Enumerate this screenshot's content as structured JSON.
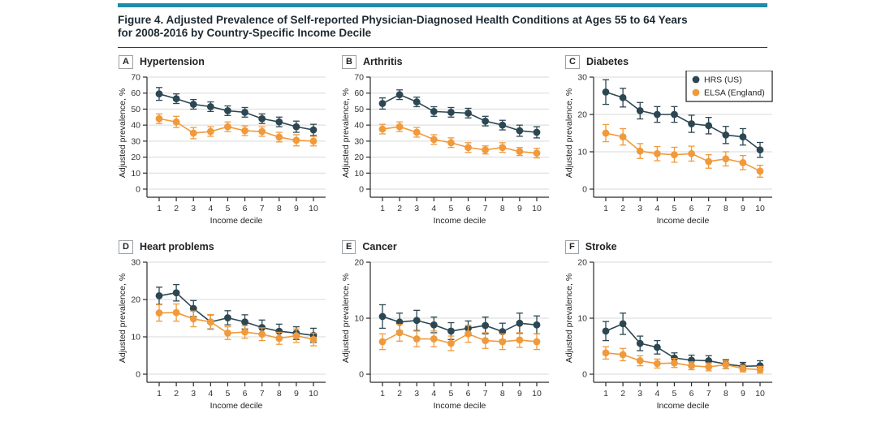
{
  "accent_colors": {
    "header_bar": "#1d8cab",
    "hrs": "#2c4752",
    "elsa": "#f09a3c",
    "gridline": "#d9d9d9",
    "axis": "#2b2b2b",
    "tick_text": "#333333",
    "legend_border": "#1a1a1a"
  },
  "figure": {
    "title_line1": "Figure 4. Adjusted Prevalence of Self-reported Physician-Diagnosed Health Conditions at Ages 55 to 64 Years",
    "title_line2": "for 2008-2016 by Country-Specific Income Decile"
  },
  "legend": {
    "position": "top-right-of-panel-C",
    "items": [
      {
        "label": "HRS (US)",
        "color": "#2c4752"
      },
      {
        "label": "ELSA (England)",
        "color": "#f09a3c"
      }
    ]
  },
  "chart_data": [
    {
      "type": "line",
      "panel_label": "A",
      "title": "Hypertension",
      "xlabel": "Income decile",
      "ylabel": "Adjusted prevalence, %",
      "x": [
        1,
        2,
        3,
        4,
        5,
        6,
        7,
        8,
        9,
        10
      ],
      "ylim": [
        0,
        70
      ],
      "yticks": [
        0,
        10,
        20,
        30,
        40,
        50,
        60,
        70
      ],
      "grid": true,
      "legend": false,
      "series": [
        {
          "name": "HRS (US)",
          "color": "#2c4752",
          "values": [
            59.5,
            56.5,
            53,
            51.5,
            49,
            48,
            44,
            42,
            39,
            37
          ],
          "ci": [
            4,
            3,
            3,
            3,
            3,
            3,
            3,
            3,
            3.5,
            3.5
          ]
        },
        {
          "name": "ELSA (England)",
          "color": "#f09a3c",
          "values": [
            44,
            42,
            35,
            36,
            39,
            36.5,
            36,
            32.5,
            30.5,
            30
          ],
          "ci": [
            3,
            3.5,
            3.5,
            3,
            3,
            3,
            3,
            3,
            3.5,
            3
          ]
        }
      ]
    },
    {
      "type": "line",
      "panel_label": "B",
      "title": "Arthritis",
      "xlabel": "Income decile",
      "ylabel": "Adjusted prevalence, %",
      "x": [
        1,
        2,
        3,
        4,
        5,
        6,
        7,
        8,
        9,
        10
      ],
      "ylim": [
        0,
        70
      ],
      "yticks": [
        0,
        10,
        20,
        30,
        40,
        50,
        60,
        70
      ],
      "grid": true,
      "legend": false,
      "series": [
        {
          "name": "HRS (US)",
          "color": "#2c4752",
          "values": [
            53.5,
            59,
            54.5,
            48.5,
            48,
            47.5,
            42.5,
            40,
            36.5,
            35.5
          ],
          "ci": [
            3.5,
            3,
            3,
            3,
            3,
            3,
            3,
            3,
            3.5,
            3.5
          ]
        },
        {
          "name": "ELSA (England)",
          "color": "#f09a3c",
          "values": [
            37.5,
            39,
            35.5,
            31,
            29,
            26,
            24.5,
            26,
            23.5,
            22.5
          ],
          "ci": [
            3,
            3,
            3,
            3,
            3,
            3,
            2.5,
            3,
            2.5,
            3
          ]
        }
      ]
    },
    {
      "type": "line",
      "panel_label": "C",
      "title": "Diabetes",
      "xlabel": "Income decile",
      "ylabel": "Adjusted prevalence, %",
      "x": [
        1,
        2,
        3,
        4,
        5,
        6,
        7,
        8,
        9,
        10
      ],
      "ylim": [
        0,
        30
      ],
      "yticks": [
        0,
        10,
        20,
        30
      ],
      "grid": true,
      "legend": true,
      "series": [
        {
          "name": "HRS (US)",
          "color": "#2c4752",
          "values": [
            26,
            24.5,
            21,
            20,
            20,
            17.5,
            17,
            14.5,
            14,
            10.5
          ],
          "ci": [
            3.3,
            2.5,
            2.2,
            2.1,
            2.1,
            2.3,
            2.2,
            2.3,
            2.2,
            2
          ]
        },
        {
          "name": "ELSA (England)",
          "color": "#f09a3c",
          "values": [
            15,
            14,
            10.2,
            9.5,
            9.2,
            9.5,
            7.4,
            8.1,
            7.1,
            4.8
          ],
          "ci": [
            2.3,
            2.2,
            2,
            1.9,
            2,
            2,
            1.8,
            1.9,
            1.9,
            1.6
          ]
        }
      ]
    },
    {
      "type": "line",
      "panel_label": "D",
      "title": "Heart problems",
      "xlabel": "Income decile",
      "ylabel": "Adjusted prevalence, %",
      "x": [
        1,
        2,
        3,
        4,
        5,
        6,
        7,
        8,
        9,
        10
      ],
      "ylim": [
        0,
        30
      ],
      "yticks": [
        0,
        10,
        20,
        30
      ],
      "grid": true,
      "legend": false,
      "series": [
        {
          "name": "HRS (US)",
          "color": "#2c4752",
          "values": [
            21,
            21.8,
            17.6,
            14,
            15.1,
            14,
            12.5,
            11.5,
            11,
            10.4
          ],
          "ci": [
            2.3,
            2.2,
            2.1,
            1.9,
            1.9,
            1.9,
            2,
            1.9,
            1.7,
            1.9
          ]
        },
        {
          "name": "ELSA (England)",
          "color": "#f09a3c",
          "values": [
            16.4,
            16.5,
            14.8,
            14,
            11,
            11.3,
            10.7,
            9.6,
            10.3,
            9.3
          ],
          "ci": [
            2.2,
            2.3,
            2.1,
            2,
            1.7,
            1.7,
            1.7,
            1.6,
            1.8,
            1.7
          ]
        }
      ]
    },
    {
      "type": "line",
      "panel_label": "E",
      "title": "Cancer",
      "xlabel": "Income decile",
      "ylabel": "Adjusted prevalence, %",
      "x": [
        1,
        2,
        3,
        4,
        5,
        6,
        7,
        8,
        9,
        10
      ],
      "ylim": [
        0,
        20
      ],
      "yticks": [
        0,
        10,
        20
      ],
      "grid": true,
      "legend": false,
      "series": [
        {
          "name": "HRS (US)",
          "color": "#2c4752",
          "values": [
            10.3,
            9.3,
            9.6,
            8.8,
            7.7,
            8.2,
            8.7,
            7.6,
            9.1,
            8.8
          ],
          "ci": [
            2.1,
            1.6,
            1.8,
            1.4,
            1.5,
            1.3,
            1.5,
            1.5,
            1.8,
            1.6
          ]
        },
        {
          "name": "ELSA (England)",
          "color": "#f09a3c",
          "values": [
            5.8,
            7.4,
            6.3,
            6.3,
            5.5,
            7.2,
            6,
            5.8,
            6.1,
            5.8
          ],
          "ci": [
            1.4,
            1.5,
            1.4,
            1.4,
            1.3,
            1.5,
            1.4,
            1.4,
            1.3,
            1.4
          ]
        }
      ]
    },
    {
      "type": "line",
      "panel_label": "F",
      "title": "Stroke",
      "xlabel": "Income decile",
      "ylabel": "Adjusted prevalence, %",
      "x": [
        1,
        2,
        3,
        4,
        5,
        6,
        7,
        8,
        9,
        10
      ],
      "ylim": [
        0,
        20
      ],
      "yticks": [
        0,
        10,
        20
      ],
      "grid": true,
      "legend": false,
      "series": [
        {
          "name": "HRS (US)",
          "color": "#2c4752",
          "values": [
            7.7,
            9,
            5.5,
            4.8,
            2.9,
            2.5,
            2.4,
            1.8,
            1.4,
            1.5
          ],
          "ci": [
            1.7,
            1.9,
            1.3,
            1.2,
            0.9,
            0.9,
            0.9,
            0.8,
            0.7,
            0.9
          ]
        },
        {
          "name": "ELSA (England)",
          "color": "#f09a3c",
          "values": [
            3.8,
            3.5,
            2.4,
            1.9,
            2,
            1.5,
            1.3,
            1.7,
            1,
            0.8
          ],
          "ci": [
            1.1,
            1.1,
            0.9,
            0.8,
            0.8,
            0.7,
            0.7,
            0.7,
            0.6,
            0.6
          ]
        }
      ]
    }
  ]
}
